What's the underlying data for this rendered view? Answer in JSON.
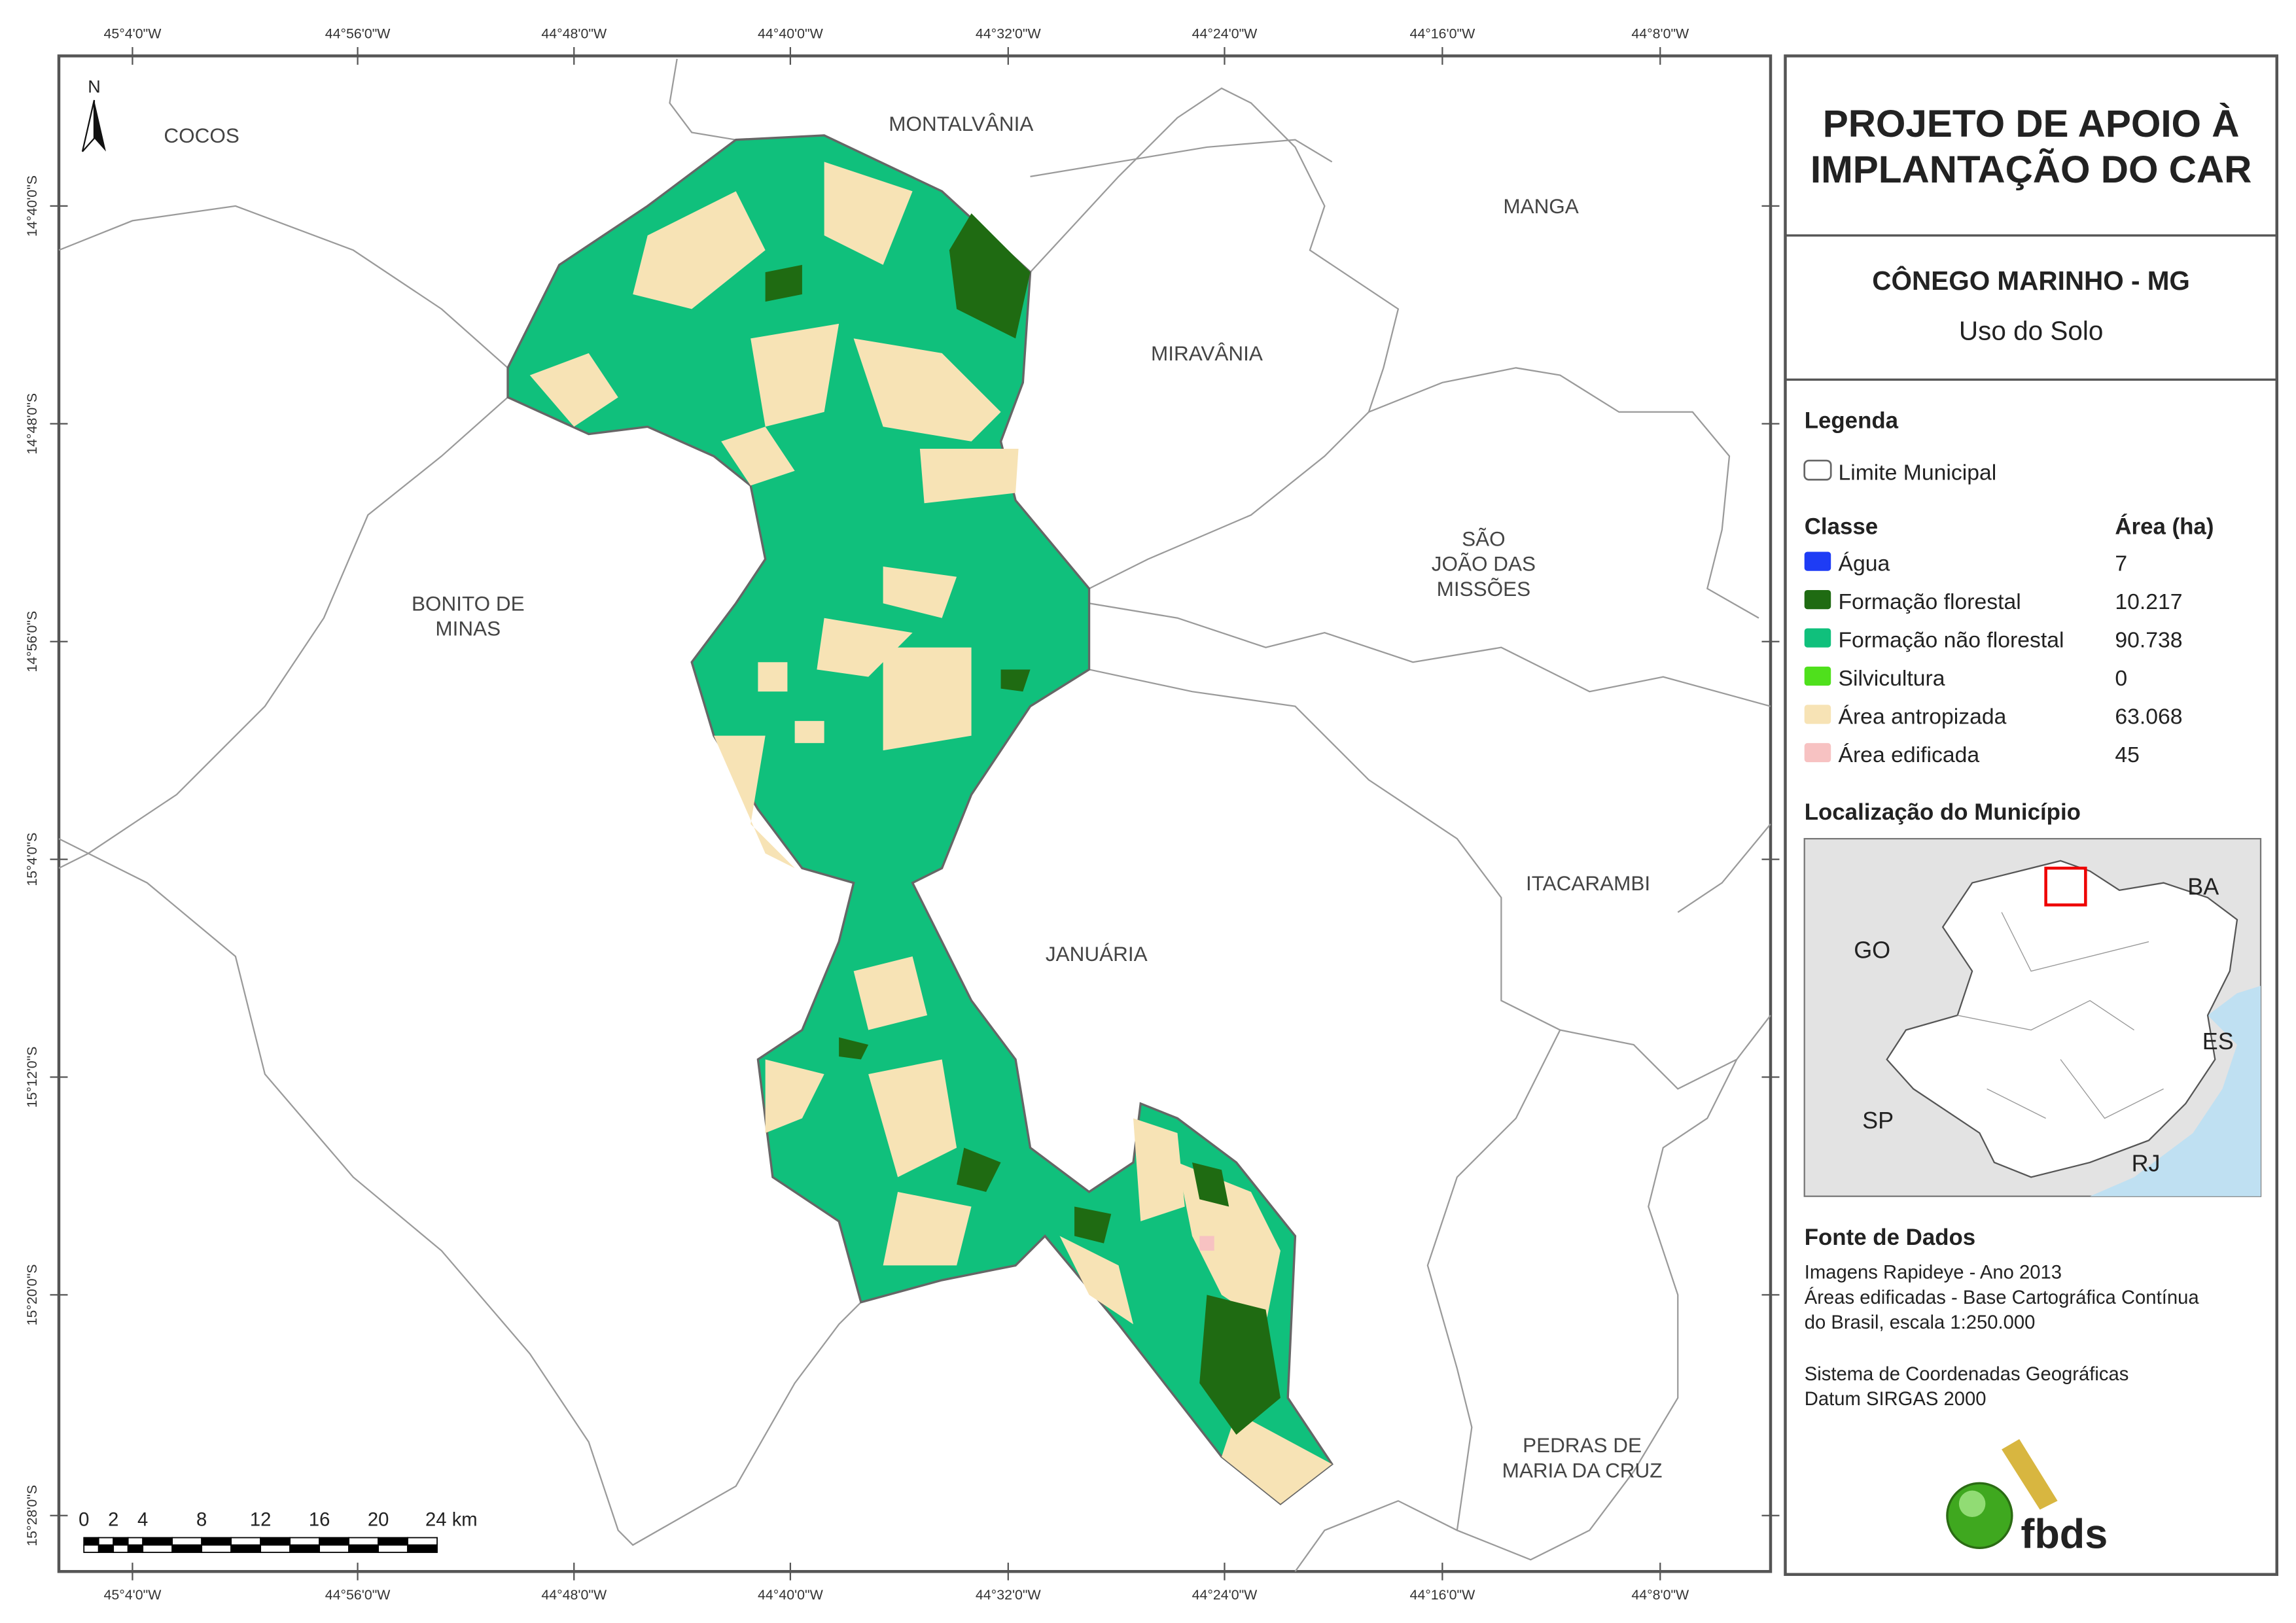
{
  "map": {
    "lon_ticks": [
      "45°4'0\"W",
      "44°56'0\"W",
      "44°48'0\"W",
      "44°40'0\"W",
      "44°32'0\"W",
      "44°24'0\"W",
      "44°16'0\"W",
      "44°8'0\"W"
    ],
    "lat_ticks": [
      "14°40'0\"S",
      "14°48'0\"S",
      "14°56'0\"S",
      "15°4'0\"S",
      "15°12'0\"S",
      "15°20'0\"S",
      "15°28'0\"S"
    ],
    "north": "N",
    "places": [
      {
        "lines": [
          "COCOS"
        ]
      },
      {
        "lines": [
          "MONTALVÂNIA"
        ]
      },
      {
        "lines": [
          "MANGA"
        ]
      },
      {
        "lines": [
          "MIRAVÂNIA"
        ]
      },
      {
        "lines": [
          "SÃO",
          "JOÃO DAS",
          "MISSÕES"
        ]
      },
      {
        "lines": [
          "BONITO DE",
          "MINAS"
        ]
      },
      {
        "lines": [
          "ITACARAMBI"
        ]
      },
      {
        "lines": [
          "JANUÁRIA"
        ]
      },
      {
        "lines": [
          "PEDRAS DE",
          "MARIA DA CRUZ"
        ]
      }
    ],
    "scale": [
      "0",
      "2",
      "4",
      "8",
      "12",
      "16",
      "20",
      "24 km"
    ]
  },
  "panel": {
    "title": [
      "PROJETO DE APOIO À",
      "IMPLANTAÇÃO DO CAR"
    ],
    "municipality": "CÔNEGO MARINHO - MG",
    "subtitle": "Uso do Solo",
    "legend": {
      "title": "Legenda",
      "boundary": "Limite Municipal",
      "class_header": "Classe",
      "area_header": "Área (ha)",
      "classes": [
        {
          "name": "Água",
          "color": "#1e3cf5",
          "area": "7"
        },
        {
          "name": "Formação florestal",
          "color": "#1f6b12",
          "area": "10.217"
        },
        {
          "name": "Formação não florestal",
          "color": "#10c07c",
          "area": "90.738"
        },
        {
          "name": "Silvicultura",
          "color": "#4fe01c",
          "area": "0"
        },
        {
          "name": "Área antropizada",
          "color": "#f7e3b5",
          "area": "63.068"
        },
        {
          "name": "Área edificada",
          "color": "#f7c2c2",
          "area": "45"
        }
      ]
    },
    "location": {
      "title": "Localização do Município",
      "states": [
        "GO",
        "BA",
        "ES",
        "SP",
        "RJ"
      ]
    },
    "sources": {
      "title": "Fonte de Dados",
      "lines": [
        "Imagens Rapideye - Ano 2013",
        "Áreas edificadas - Base Cartográfica Contínua",
        "do Brasil, escala 1:250.000"
      ],
      "crs": [
        "Sistema de Coordenadas Geográficas",
        "Datum SIRGAS 2000"
      ]
    },
    "logo": "fbds"
  }
}
